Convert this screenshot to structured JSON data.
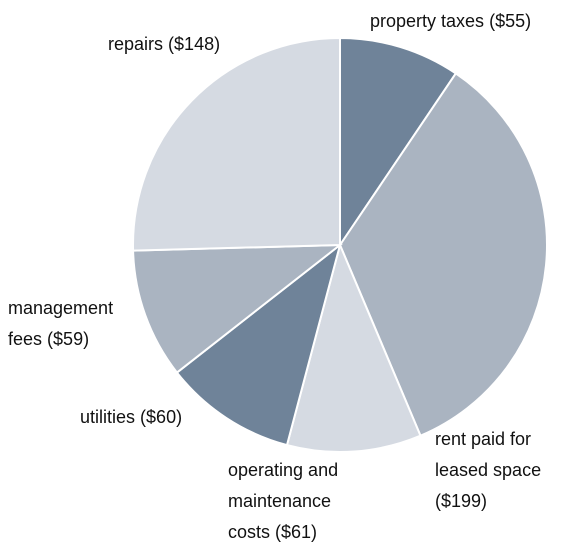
{
  "chart_data": {
    "type": "pie",
    "categories": [
      "property taxes",
      "rent paid for leased space",
      "operating and maintenance costs",
      "utilities",
      "management fees",
      "repairs"
    ],
    "values": [
      55,
      199,
      61,
      60,
      59,
      148
    ],
    "value_labels": [
      "($55)",
      "($199)",
      "($61)",
      "($60)",
      "($59)",
      "($148)"
    ],
    "colors": [
      "#6f8399",
      "#aab4c1",
      "#d5dae2",
      "#6f8399",
      "#aab4c1",
      "#d5dae2"
    ]
  }
}
